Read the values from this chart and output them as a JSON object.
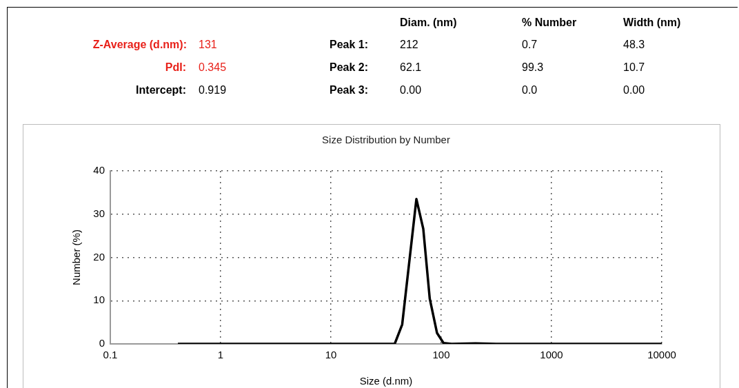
{
  "chart_data": {
    "type": "line",
    "title": "Size Distribution by Number",
    "xlabel": "Size (d.nm)",
    "ylabel": "Number (%)",
    "x": [
      0.41,
      37.9,
      44.3,
      59.6,
      68.8,
      78.7,
      91.7,
      105,
      124,
      205,
      316,
      10000
    ],
    "series": [
      {
        "color": "#000000",
        "values": [
          0,
          0,
          4.5,
          33.5,
          26.6,
          10.5,
          2.5,
          0.2,
          0,
          0.1,
          0,
          0
        ]
      }
    ],
    "xlim": [
      0.1,
      10000
    ],
    "xticks": [
      0.1,
      1,
      10,
      100,
      1000,
      10000
    ],
    "ylim": [
      0,
      40
    ],
    "yticks": [
      0,
      10,
      20,
      30,
      40
    ],
    "log": "x",
    "grid": true,
    "legend": false,
    "marker": "none",
    "line_style": "solid",
    "annotations": [
      "Z-Average (d.nm):",
      "131",
      "PdI:",
      "0.345",
      "Intercept:",
      "0.919",
      "Diam. (nm)",
      "% Number",
      "Width (nm)",
      "Peak 1:",
      "212",
      "0.7",
      "48.3",
      "Peak 2:",
      "62.1",
      "99.3",
      "10.7",
      "Peak 3:",
      "0.00",
      "0.0",
      "0.00"
    ]
  }
}
